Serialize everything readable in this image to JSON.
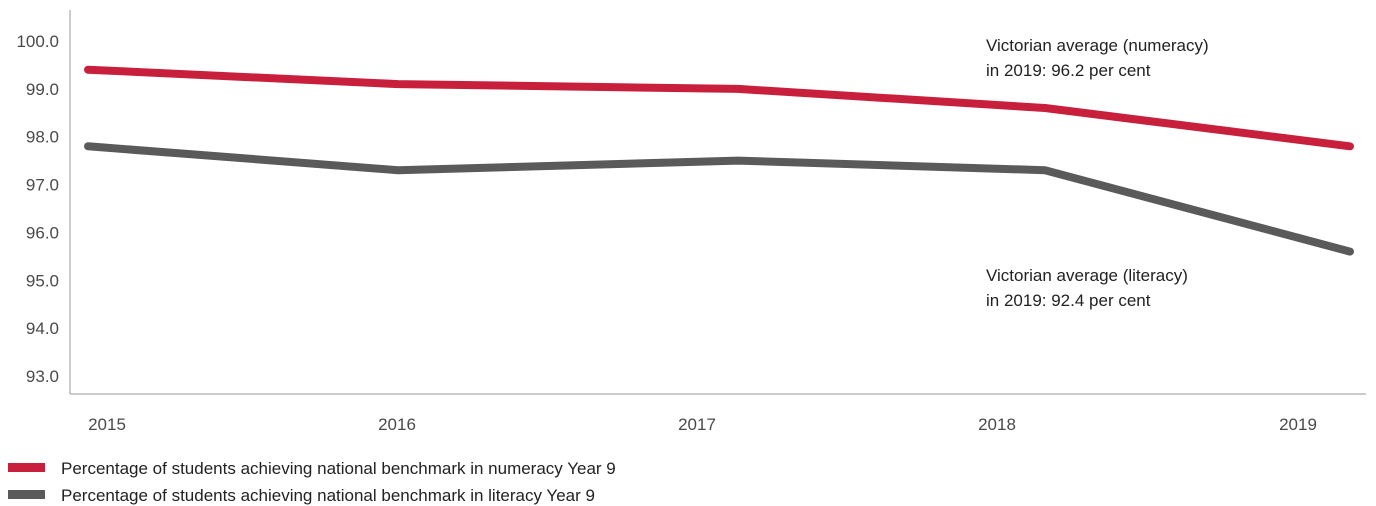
{
  "chart_data": {
    "type": "line",
    "title": "",
    "xlabel": "",
    "ylabel": "",
    "x": [
      "2015",
      "2016",
      "2017",
      "2018",
      "2019"
    ],
    "ylim": [
      92.5,
      101
    ],
    "yticks": [
      "93.0",
      "94.0",
      "95.0",
      "96.0",
      "97.0",
      "98.0",
      "99.0",
      "100.0"
    ],
    "grid": false,
    "legend_position": "bottom-left",
    "series": [
      {
        "name": "Percentage of students achieving national benchmark in numeracy Year 9",
        "color": "#c8203c",
        "values": [
          99.4,
          99.1,
          99.0,
          98.6,
          97.8
        ]
      },
      {
        "name": "Percentage of students achieving national benchmark in literacy Year 9",
        "color": "#5a5a5a",
        "values": [
          97.8,
          97.3,
          97.5,
          97.3,
          95.6
        ]
      }
    ],
    "annotations": [
      {
        "series_index": 0,
        "lines": [
          "Victorian average (numeracy)",
          "in 2019: 96.2 per cent"
        ]
      },
      {
        "series_index": 1,
        "lines": [
          "Victorian average (literacy)",
          "in 2019: 92.4 per cent"
        ]
      }
    ]
  }
}
